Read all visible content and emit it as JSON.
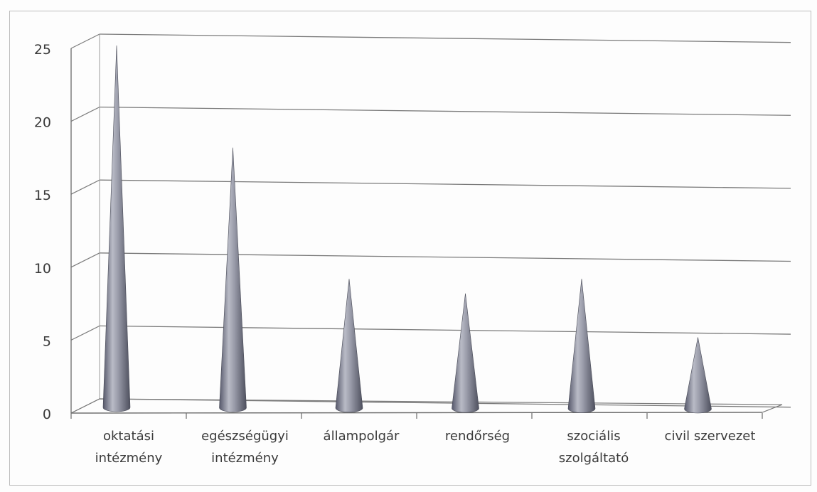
{
  "chart_data": {
    "type": "bar",
    "style": "3d-cone",
    "categories": [
      [
        "oktatási",
        "intézmény"
      ],
      [
        "egészségügyi",
        "intézmény"
      ],
      [
        "állampolgár"
      ],
      [
        "rendőrség"
      ],
      [
        "szociális",
        "szolgáltató"
      ],
      [
        "civil szervezet"
      ]
    ],
    "values": [
      25,
      18,
      9,
      8,
      9,
      5
    ],
    "yticks": [
      "0",
      "5",
      "10",
      "15",
      "20",
      "25"
    ],
    "ylim": [
      0,
      25
    ],
    "grid": true,
    "colors": {
      "cone": "#8a8c98",
      "cone_light": "#c9cad2",
      "cone_dark": "#4e505c",
      "grid": "#7a7a7a"
    }
  }
}
